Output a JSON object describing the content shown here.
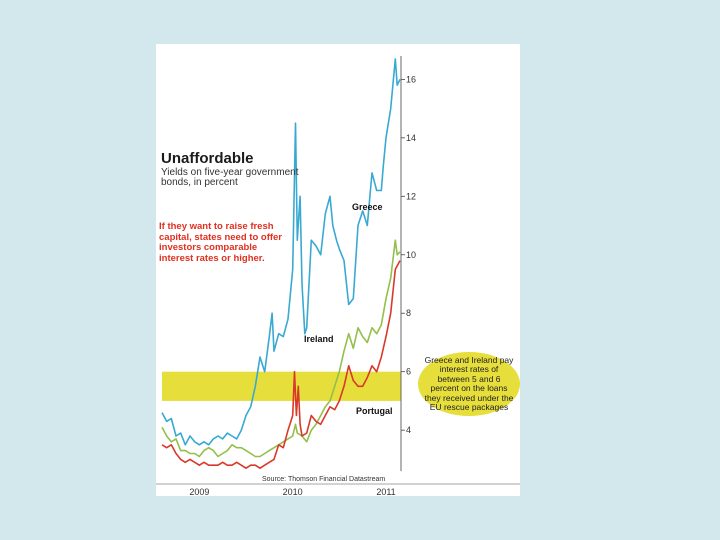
{
  "texts": {
    "title": "Unaffordable",
    "subtitle": "Yields on five-year government bonds, in percent",
    "note": "If they want to raise fresh capital, states need to offer investors comparable interest rates or higher.",
    "callout": "Greece and Ireland pay interest rates of between 5 and 6 percent on the loans they received under the EU rescue packages",
    "source": "Source: Thomson Financial Datastream"
  },
  "colors": {
    "Greece": "#3aa9d2",
    "Ireland": "#93bf4a",
    "Portugal": "#d8392a",
    "band": "#e6de3a"
  },
  "chart_data": {
    "type": "line",
    "title": "Unaffordable",
    "subtitle": "Yields on five-year government bonds, in percent",
    "xlabel": "",
    "ylabel": "",
    "ylim": [
      2.5,
      16.8
    ],
    "xlim": [
      2008.75,
      2011.3
    ],
    "yticks": [
      4,
      6,
      8,
      10,
      12,
      14,
      16
    ],
    "yticklabels": [
      "4",
      "6",
      "8",
      "10",
      "12",
      "14",
      "16"
    ],
    "xticks": [
      2009,
      2010,
      2011
    ],
    "xticklabels": [
      "2009",
      "2010",
      "2011"
    ],
    "band": {
      "y0": 5,
      "y1": 6
    },
    "source": "Source: Thomson Financial Datastream",
    "series": [
      {
        "name": "Greece",
        "label": "Greece",
        "points": [
          [
            2008.75,
            4.6
          ],
          [
            2008.8,
            4.3
          ],
          [
            2008.85,
            4.4
          ],
          [
            2008.9,
            3.8
          ],
          [
            2008.95,
            3.9
          ],
          [
            2009.0,
            3.5
          ],
          [
            2009.05,
            3.8
          ],
          [
            2009.1,
            3.6
          ],
          [
            2009.15,
            3.5
          ],
          [
            2009.2,
            3.6
          ],
          [
            2009.25,
            3.5
          ],
          [
            2009.3,
            3.7
          ],
          [
            2009.35,
            3.8
          ],
          [
            2009.4,
            3.7
          ],
          [
            2009.45,
            3.9
          ],
          [
            2009.5,
            3.8
          ],
          [
            2009.55,
            3.7
          ],
          [
            2009.6,
            4.0
          ],
          [
            2009.65,
            4.5
          ],
          [
            2009.7,
            4.8
          ],
          [
            2009.75,
            5.5
          ],
          [
            2009.8,
            6.5
          ],
          [
            2009.85,
            6.0
          ],
          [
            2009.9,
            7.2
          ],
          [
            2009.93,
            8.0
          ],
          [
            2009.95,
            6.7
          ],
          [
            2010.0,
            7.3
          ],
          [
            2010.05,
            7.2
          ],
          [
            2010.1,
            7.8
          ],
          [
            2010.15,
            9.5
          ],
          [
            2010.18,
            14.5
          ],
          [
            2010.2,
            10.5
          ],
          [
            2010.23,
            12.0
          ],
          [
            2010.25,
            9.0
          ],
          [
            2010.28,
            7.3
          ],
          [
            2010.3,
            7.5
          ],
          [
            2010.35,
            10.5
          ],
          [
            2010.4,
            10.3
          ],
          [
            2010.45,
            10.0
          ],
          [
            2010.5,
            11.4
          ],
          [
            2010.55,
            12.0
          ],
          [
            2010.58,
            11.0
          ],
          [
            2010.62,
            10.5
          ],
          [
            2010.65,
            10.2
          ],
          [
            2010.7,
            9.8
          ],
          [
            2010.75,
            8.3
          ],
          [
            2010.8,
            8.5
          ],
          [
            2010.85,
            11.0
          ],
          [
            2010.9,
            11.5
          ],
          [
            2010.95,
            11.0
          ],
          [
            2011.0,
            12.8
          ],
          [
            2011.05,
            12.2
          ],
          [
            2011.1,
            12.2
          ],
          [
            2011.12,
            13.0
          ],
          [
            2011.15,
            14.0
          ],
          [
            2011.2,
            15.0
          ],
          [
            2011.25,
            16.7
          ],
          [
            2011.27,
            15.8
          ],
          [
            2011.3,
            16.0
          ]
        ]
      },
      {
        "name": "Ireland",
        "label": "Ireland",
        "points": [
          [
            2008.75,
            4.1
          ],
          [
            2008.8,
            3.8
          ],
          [
            2008.85,
            3.6
          ],
          [
            2008.9,
            3.7
          ],
          [
            2008.95,
            3.3
          ],
          [
            2009.0,
            3.3
          ],
          [
            2009.05,
            3.2
          ],
          [
            2009.1,
            3.2
          ],
          [
            2009.15,
            3.1
          ],
          [
            2009.2,
            3.3
          ],
          [
            2009.25,
            3.4
          ],
          [
            2009.3,
            3.3
          ],
          [
            2009.35,
            3.1
          ],
          [
            2009.4,
            3.2
          ],
          [
            2009.45,
            3.3
          ],
          [
            2009.5,
            3.5
          ],
          [
            2009.55,
            3.4
          ],
          [
            2009.6,
            3.4
          ],
          [
            2009.65,
            3.3
          ],
          [
            2009.7,
            3.2
          ],
          [
            2009.75,
            3.1
          ],
          [
            2009.8,
            3.1
          ],
          [
            2009.85,
            3.2
          ],
          [
            2009.9,
            3.3
          ],
          [
            2009.95,
            3.4
          ],
          [
            2010.0,
            3.5
          ],
          [
            2010.05,
            3.6
          ],
          [
            2010.1,
            3.7
          ],
          [
            2010.15,
            3.8
          ],
          [
            2010.18,
            4.2
          ],
          [
            2010.2,
            3.9
          ],
          [
            2010.25,
            3.8
          ],
          [
            2010.3,
            3.6
          ],
          [
            2010.35,
            4.0
          ],
          [
            2010.4,
            4.2
          ],
          [
            2010.45,
            4.5
          ],
          [
            2010.5,
            4.8
          ],
          [
            2010.55,
            5.0
          ],
          [
            2010.6,
            5.5
          ],
          [
            2010.65,
            6.0
          ],
          [
            2010.7,
            6.7
          ],
          [
            2010.75,
            7.3
          ],
          [
            2010.8,
            6.8
          ],
          [
            2010.85,
            7.5
          ],
          [
            2010.9,
            7.2
          ],
          [
            2010.95,
            7.0
          ],
          [
            2011.0,
            7.5
          ],
          [
            2011.05,
            7.3
          ],
          [
            2011.1,
            7.6
          ],
          [
            2011.15,
            8.5
          ],
          [
            2011.2,
            9.2
          ],
          [
            2011.25,
            10.5
          ],
          [
            2011.27,
            10.0
          ],
          [
            2011.3,
            10.1
          ]
        ]
      },
      {
        "name": "Portugal",
        "label": "Portugal",
        "points": [
          [
            2008.75,
            3.5
          ],
          [
            2008.8,
            3.4
          ],
          [
            2008.85,
            3.5
          ],
          [
            2008.9,
            3.2
          ],
          [
            2008.95,
            3.0
          ],
          [
            2009.0,
            2.9
          ],
          [
            2009.05,
            3.0
          ],
          [
            2009.1,
            2.9
          ],
          [
            2009.15,
            2.8
          ],
          [
            2009.2,
            2.9
          ],
          [
            2009.25,
            2.8
          ],
          [
            2009.3,
            2.8
          ],
          [
            2009.35,
            2.8
          ],
          [
            2009.4,
            2.9
          ],
          [
            2009.45,
            2.8
          ],
          [
            2009.5,
            2.8
          ],
          [
            2009.55,
            2.9
          ],
          [
            2009.6,
            2.8
          ],
          [
            2009.65,
            2.7
          ],
          [
            2009.7,
            2.8
          ],
          [
            2009.75,
            2.8
          ],
          [
            2009.8,
            2.7
          ],
          [
            2009.85,
            2.8
          ],
          [
            2009.9,
            2.9
          ],
          [
            2009.95,
            3.0
          ],
          [
            2010.0,
            3.5
          ],
          [
            2010.05,
            3.4
          ],
          [
            2010.1,
            4.0
          ],
          [
            2010.15,
            4.5
          ],
          [
            2010.17,
            6.0
          ],
          [
            2010.19,
            4.5
          ],
          [
            2010.21,
            5.5
          ],
          [
            2010.23,
            4.2
          ],
          [
            2010.25,
            3.8
          ],
          [
            2010.3,
            3.9
          ],
          [
            2010.35,
            4.5
          ],
          [
            2010.4,
            4.3
          ],
          [
            2010.45,
            4.2
          ],
          [
            2010.5,
            4.5
          ],
          [
            2010.55,
            4.8
          ],
          [
            2010.6,
            4.7
          ],
          [
            2010.65,
            5.0
          ],
          [
            2010.7,
            5.5
          ],
          [
            2010.75,
            6.2
          ],
          [
            2010.8,
            5.7
          ],
          [
            2010.85,
            5.5
          ],
          [
            2010.9,
            5.5
          ],
          [
            2010.95,
            5.8
          ],
          [
            2011.0,
            6.2
          ],
          [
            2011.05,
            6.0
          ],
          [
            2011.1,
            6.5
          ],
          [
            2011.15,
            7.2
          ],
          [
            2011.2,
            8.0
          ],
          [
            2011.25,
            9.5
          ],
          [
            2011.3,
            9.8
          ]
        ]
      }
    ]
  }
}
